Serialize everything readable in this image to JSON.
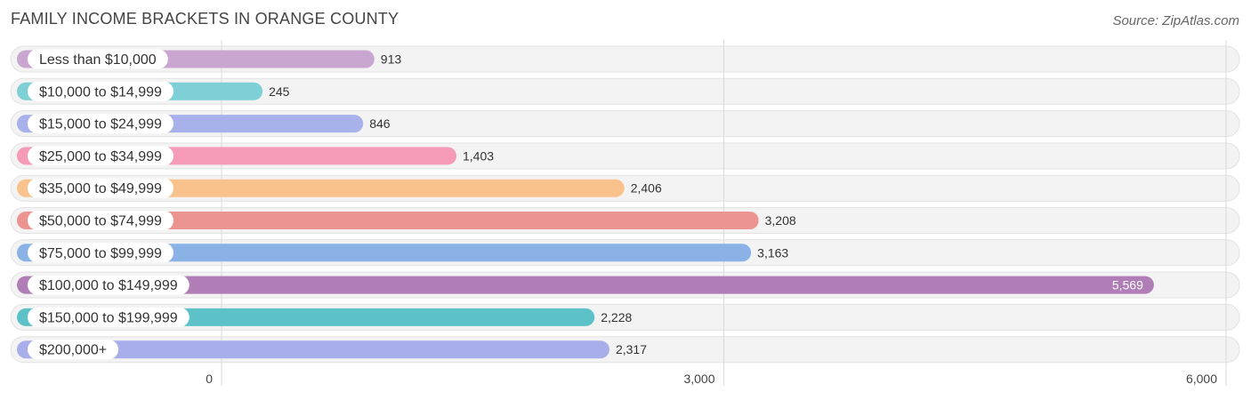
{
  "header": {
    "title": "FAMILY INCOME BRACKETS IN ORANGE COUNTY",
    "source": "Source: ZipAtlas.com"
  },
  "chart_data": {
    "type": "bar",
    "orientation": "horizontal",
    "title": "FAMILY INCOME BRACKETS IN ORANGE COUNTY",
    "xlabel": "",
    "ylabel": "",
    "xlim": [
      0,
      6000
    ],
    "ticks": [
      0,
      3000,
      6000
    ],
    "tick_labels": [
      "0",
      "3,000",
      "6,000"
    ],
    "grid": true,
    "categories": [
      "Less than $10,000",
      "$10,000 to $14,999",
      "$15,000 to $24,999",
      "$25,000 to $34,999",
      "$35,000 to $49,999",
      "$50,000 to $74,999",
      "$75,000 to $99,999",
      "$100,000 to $149,999",
      "$150,000 to $199,999",
      "$200,000+"
    ],
    "values": [
      913,
      245,
      846,
      1403,
      2406,
      3208,
      3163,
      5569,
      2228,
      2317
    ],
    "value_labels": [
      "913",
      "245",
      "846",
      "1,403",
      "2,406",
      "3,208",
      "3,163",
      "5,569",
      "2,228",
      "2,317"
    ],
    "colors": [
      "#c9a6d0",
      "#7ecfd6",
      "#a9b1ea",
      "#f59bb8",
      "#f9c28c",
      "#ec9590",
      "#8ab2e6",
      "#b07db7",
      "#5cc2c7",
      "#a7aeea"
    ]
  }
}
